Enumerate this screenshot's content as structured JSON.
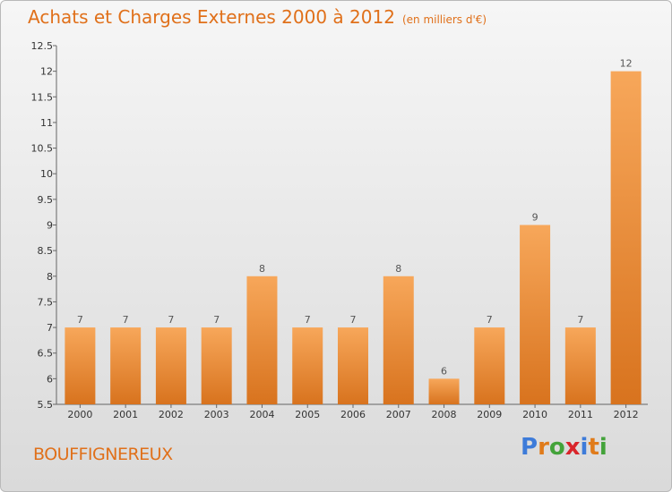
{
  "title": "Achats et Charges Externes 2000 à 2012",
  "unit": "(en milliers d'€)",
  "place": "BOUFFIGNEREUX",
  "logo": {
    "letters": [
      "P",
      "r",
      "o",
      "x",
      "i",
      "t",
      "i"
    ],
    "colors": [
      "#3d7bd9",
      "#e07b1a",
      "#43a33a",
      "#d9252b",
      "#3d7bd9",
      "#e07b1a",
      "#43a33a"
    ]
  },
  "chart_data": {
    "type": "bar",
    "categories": [
      "2000",
      "2001",
      "2002",
      "2003",
      "2004",
      "2005",
      "2006",
      "2007",
      "2008",
      "2009",
      "2010",
      "2011",
      "2012"
    ],
    "values": [
      7,
      7,
      7,
      7,
      8,
      7,
      7,
      8,
      6,
      7,
      9,
      7,
      12
    ],
    "value_labels": [
      "7",
      "7",
      "7",
      "7",
      "8",
      "7",
      "7",
      "8",
      "6",
      "7",
      "9",
      "7",
      "12"
    ],
    "ylim": [
      5.5,
      12.5
    ],
    "yticks": [
      5.5,
      6,
      6.5,
      7,
      7.5,
      8,
      8.5,
      9,
      9.5,
      10,
      10.5,
      11,
      11.5,
      12,
      12.5
    ],
    "ytick_labels": [
      "5.5",
      "6",
      "6.5",
      "7",
      "7.5",
      "8",
      "8.5",
      "9",
      "9.5",
      "10",
      "10.5",
      "11",
      "11.5",
      "12",
      "12.5"
    ],
    "grid": false,
    "bar_color_top": "#f7a75a",
    "bar_color_bottom": "#d8731e"
  }
}
